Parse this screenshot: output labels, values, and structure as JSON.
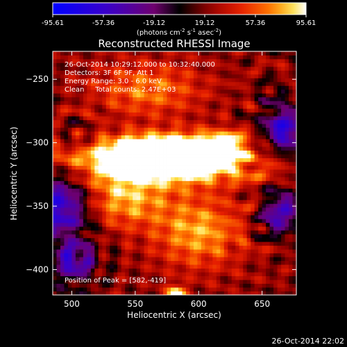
{
  "chart_data": {
    "type": "heatmap",
    "title": "Reconstructed RHESSI Image",
    "xlabel": "Heliocentric X (arcsec)",
    "ylabel": "Heliocentric Y (arcsec)",
    "xlim": [
      485,
      677
    ],
    "ylim": [
      -420,
      -228
    ],
    "x_ticks": [
      500,
      550,
      600,
      650
    ],
    "y_ticks": [
      -250,
      -300,
      -350,
      -400
    ],
    "colorbar": {
      "min": -95.61,
      "max": 95.61,
      "ticks": [
        "-95.61",
        "-57.36",
        "-19.12",
        "19.12",
        "57.36",
        "95.61"
      ],
      "unit_text": "(photons cm",
      "unit_exp1": "-2",
      "unit_mid": " s",
      "unit_exp2": "-1",
      "unit_mid2": " asec",
      "unit_exp3": "-2",
      "unit_end": ")"
    },
    "annotations": {
      "time_range": "26-Oct-2014 10:29:12.000 to 10:32:40.000",
      "detectors": "Detectors: 3F 6F 9F, Att 1",
      "energy": "Energy Range: 3.0 - 6.0 keV",
      "clean": "Clean     Total counts: 2.47E+03",
      "peak": "Position of Peak = [582,-419]"
    },
    "peak": {
      "x": 582,
      "y": -419
    },
    "ring_centers": [
      {
        "x": 503,
        "y": -293
      },
      {
        "x": 655,
        "y": -258
      },
      {
        "x": 650,
        "y": -366
      },
      {
        "x": 505,
        "y": -390
      },
      {
        "x": 640,
        "y": -310
      }
    ],
    "bright_features": [
      {
        "x": 572,
        "y": -315,
        "amp": 95,
        "sx": 55,
        "sy": 12
      },
      {
        "x": 585,
        "y": -308,
        "amp": 90,
        "sx": 20,
        "sy": 10
      },
      {
        "x": 548,
        "y": -308,
        "amp": 80,
        "sx": 14,
        "sy": 9
      },
      {
        "x": 620,
        "y": -302,
        "amp": 70,
        "sx": 12,
        "sy": 8
      },
      {
        "x": 582,
        "y": -419,
        "amp": 96,
        "sx": 5,
        "sy": 4
      },
      {
        "x": 540,
        "y": -345,
        "amp": 55,
        "sx": 25,
        "sy": 15
      },
      {
        "x": 600,
        "y": -370,
        "amp": 55,
        "sx": 25,
        "sy": 20
      },
      {
        "x": 560,
        "y": -258,
        "amp": 45,
        "sx": 30,
        "sy": 15
      }
    ],
    "dark_features": [
      {
        "x": 490,
        "y": -350,
        "amp": -90,
        "sx": 18,
        "sy": 18
      },
      {
        "x": 668,
        "y": -290,
        "amp": -85,
        "sx": 12,
        "sy": 14
      },
      {
        "x": 665,
        "y": -355,
        "amp": -75,
        "sx": 10,
        "sy": 12
      },
      {
        "x": 500,
        "y": -395,
        "amp": -60,
        "sx": 14,
        "sy": 12
      }
    ]
  },
  "footer": {
    "timestamp": "26-Oct-2014 22:02"
  }
}
